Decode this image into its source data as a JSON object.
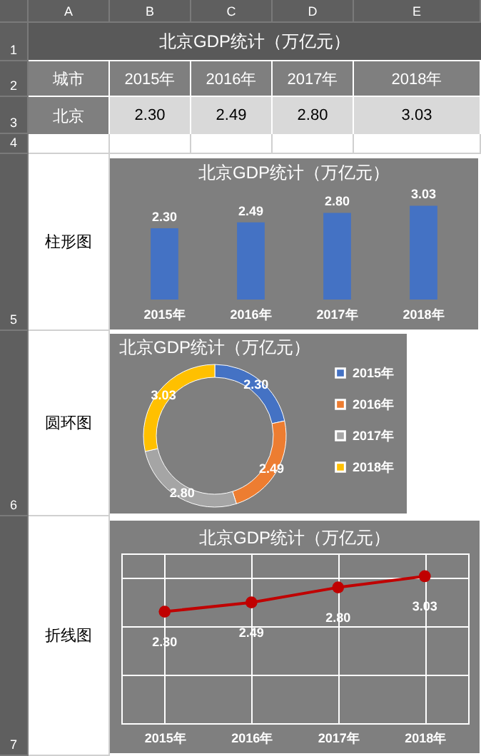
{
  "chart_data": [
    {
      "type": "other",
      "title": "北京GDP统计（万亿元）",
      "categories": [
        "2015年",
        "2016年",
        "2017年",
        "2018年"
      ],
      "y_categories": [
        "北京"
      ],
      "cell_labels": [
        [
          "2.30",
          "2.49",
          "2.80",
          "3.03"
        ]
      ],
      "annotations": [
        "城市",
        "A",
        "B",
        "C",
        "D",
        "E",
        "1",
        "2",
        "3",
        "4",
        "5",
        "6",
        "7"
      ]
    },
    {
      "type": "bar",
      "title": "北京GDP统计（万亿元）",
      "categories": [
        "2015年",
        "2016年",
        "2017年",
        "2018年"
      ],
      "values": [
        2.3,
        2.49,
        2.8,
        3.03
      ],
      "color": "#4472c4",
      "tick_labels": "x",
      "value_labels": [
        "2.30",
        "2.49",
        "2.80",
        "3.03"
      ],
      "annotations": [
        "柱形图"
      ]
    },
    {
      "type": "donut",
      "title": "北京GDP统计（万亿元）",
      "categories": [
        "2015年",
        "2016年",
        "2017年",
        "2018年"
      ],
      "values": [
        2.3,
        2.49,
        2.8,
        3.03
      ],
      "colors": [
        "#4472c4",
        "#ed7d31",
        "#a5a5a5",
        "#ffc000"
      ],
      "legend": "right",
      "value_labels": [
        "2.30",
        "2.49",
        "2.80",
        "3.03"
      ],
      "annotations": [
        "圆环图"
      ]
    },
    {
      "type": "line",
      "title": "北京GDP统计（万亿元）",
      "categories": [
        "2015年",
        "2016年",
        "2017年",
        "2018年"
      ],
      "values": [
        2.3,
        2.49,
        2.8,
        3.03
      ],
      "color": "#c00000",
      "marker": "circle",
      "ylim": [
        0,
        3.5
      ],
      "grid": true,
      "tick_labels": "x",
      "value_labels": [
        "2.30",
        "2.49",
        "2.80",
        "3.03"
      ],
      "annotations": [
        "折线图"
      ]
    }
  ]
}
